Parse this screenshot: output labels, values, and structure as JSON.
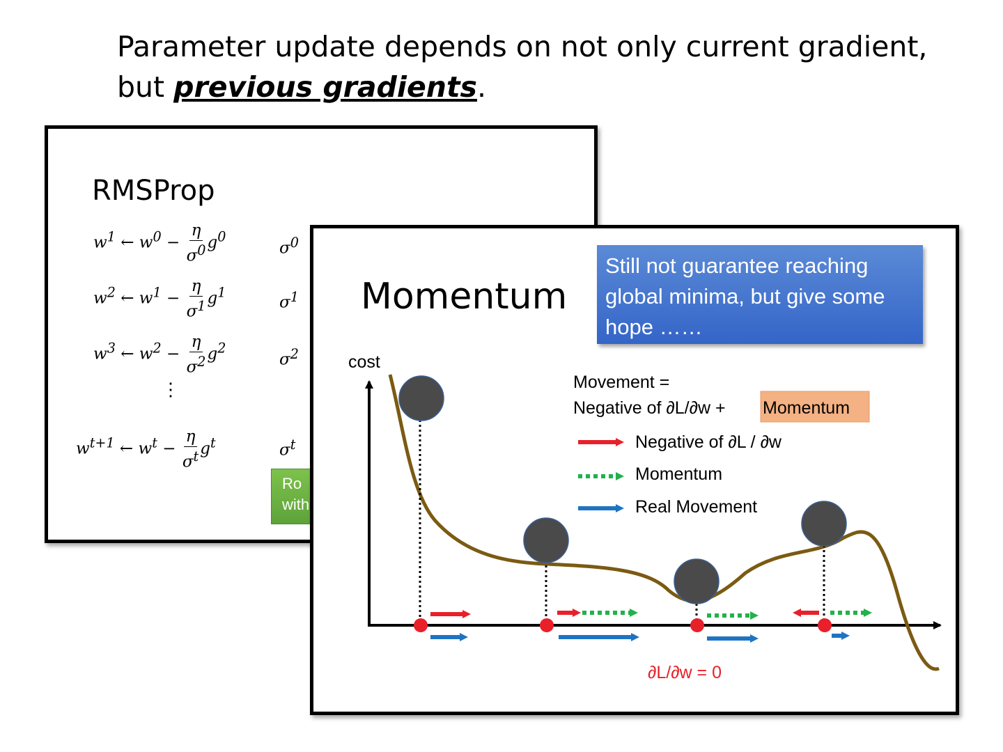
{
  "headline": {
    "line1": "Parameter update depends on not only current gradient,",
    "line2_pre": "but ",
    "line2_emph": "previous gradients",
    "line2_post": "."
  },
  "rmsprop": {
    "title": "RMSProp",
    "equations": [
      {
        "lhs": "w",
        "lhs_sup": "1",
        "prev": "w",
        "prev_sup": "0",
        "num": "η",
        "den": "σ",
        "den_sup": "0",
        "g_sup": "0",
        "sigma_sup": "0"
      },
      {
        "lhs": "w",
        "lhs_sup": "2",
        "prev": "w",
        "prev_sup": "1",
        "num": "η",
        "den": "σ",
        "den_sup": "1",
        "g_sup": "1",
        "sigma_sup": "1"
      },
      {
        "lhs": "w",
        "lhs_sup": "3",
        "prev": "w",
        "prev_sup": "2",
        "num": "η",
        "den": "σ",
        "den_sup": "2",
        "g_sup": "2",
        "sigma_sup": "2"
      },
      {
        "lhs": "w",
        "lhs_sup": "t+1",
        "prev": "w",
        "prev_sup": "t",
        "num": "η",
        "den": "σ",
        "den_sup": "t",
        "g_sup": "t",
        "sigma_sup": "t"
      }
    ],
    "vdots": "⋮",
    "green_note_lines": [
      "Ro",
      "with"
    ]
  },
  "momentum": {
    "title": "Momentum",
    "callout": "Still not guarantee reaching global minima, but give some hope ……",
    "axis_label": "cost",
    "movement_line1": "Movement =",
    "movement_line2_pre": "Negative of ∂L/∂w + ",
    "movement_highlight": "Momentum",
    "legend": [
      {
        "label": "Negative of ∂L / ∂w",
        "color": "#e8202a",
        "style": "solid"
      },
      {
        "label": "Momentum",
        "color": "#22b14c",
        "style": "dotted"
      },
      {
        "label": "Real Movement",
        "color": "#1f74c2",
        "style": "solid"
      }
    ],
    "zero_gradient_label": "∂L/∂w = 0",
    "colors": {
      "curve": "#7b5a12",
      "ball": "#4a4a4a",
      "point": "#e8202a",
      "highlight": "#f4b183"
    }
  }
}
